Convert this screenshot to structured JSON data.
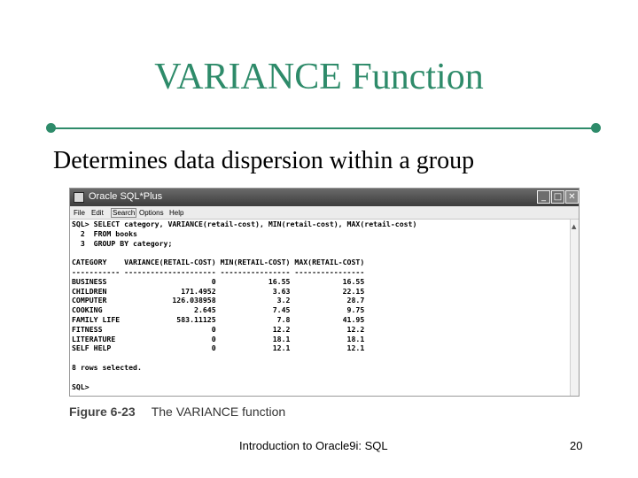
{
  "slide": {
    "title": "VARIANCE Function",
    "subtitle": "Determines data dispersion within a group",
    "accent_color": "#2e8b6a"
  },
  "window": {
    "title": "Oracle SQL*Plus",
    "buttons": {
      "minimize": "_",
      "maximize": "□",
      "close": "✕"
    },
    "menu": [
      "File",
      "Edit",
      "Search",
      "Options",
      "Help"
    ]
  },
  "console": {
    "query_lines": [
      "SQL> SELECT category, VARIANCE(retail-cost), MIN(retail-cost), MAX(retail-cost)",
      "  2  FROM books",
      "  3  GROUP BY category;"
    ],
    "column_headers": [
      "CATEGORY",
      "VARIANCE(RETAIL-COST)",
      "MIN(RETAIL-COST)",
      "MAX(RETAIL-COST)"
    ],
    "rows": [
      [
        "BUSINESS",
        "0",
        "16.55",
        "16.55"
      ],
      [
        "CHILDREN",
        "171.4952",
        "3.63",
        "22.15"
      ],
      [
        "COMPUTER",
        "126.038958",
        "3.2",
        "28.7"
      ],
      [
        "COOKING",
        "2.645",
        "7.45",
        "9.75"
      ],
      [
        "FAMILY LIFE",
        "583.11125",
        "7.8",
        "41.95"
      ],
      [
        "FITNESS",
        "0",
        "12.2",
        "12.2"
      ],
      [
        "LITERATURE",
        "0",
        "18.1",
        "18.1"
      ],
      [
        "SELF HELP",
        "0",
        "12.1",
        "12.1"
      ]
    ],
    "rows_selected": "8 rows selected.",
    "prompt": "SQL>"
  },
  "figure": {
    "number": "Figure 6-23",
    "caption": "The VARIANCE function"
  },
  "footer": {
    "text": "Introduction to Oracle9i: SQL",
    "page_number": "20"
  }
}
